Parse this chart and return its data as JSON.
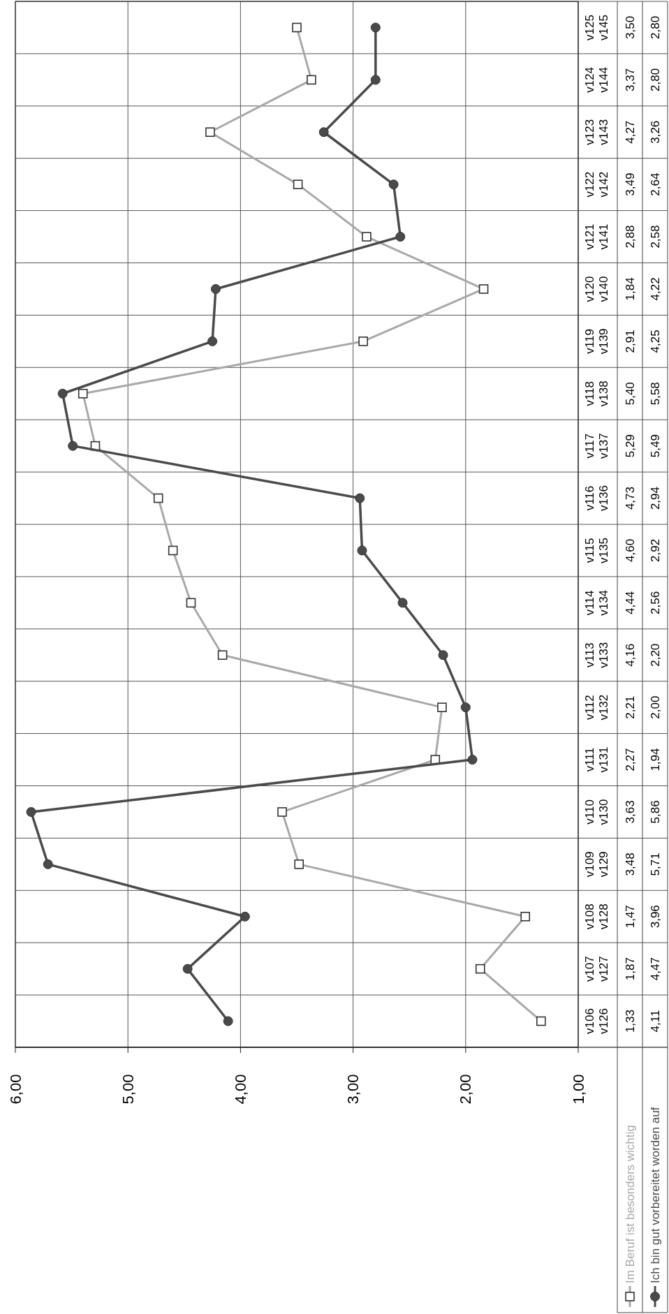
{
  "chart_data": {
    "type": "line",
    "orientation": "horizontal",
    "categories": [
      "v125\nv145",
      "v124\nv144",
      "v123\nv143",
      "v122\nv142",
      "v121\nv141",
      "v120\nv140",
      "v119\nv139",
      "v118\nv138",
      "v117\nv137",
      "v116\nv136",
      "v115\nv135",
      "v114\nv134",
      "v113\nv133",
      "v112\nv132",
      "v111\nv131",
      "v110\nv130",
      "v109\nv129",
      "v108\nv128",
      "v107\nv127",
      "v106\nv126"
    ],
    "xlim": [
      6,
      1
    ],
    "xticks": [
      {
        "value": 6,
        "label": "6,00"
      },
      {
        "value": 5,
        "label": "5,00"
      },
      {
        "value": 4,
        "label": "4,00"
      },
      {
        "value": 3,
        "label": "3,00"
      },
      {
        "value": 2,
        "label": "2,00"
      },
      {
        "value": 1,
        "label": "1,00"
      }
    ],
    "grid": true,
    "legend": "bottom",
    "series": [
      {
        "name": "Im Beruf ist besonders wichtig",
        "color": "#a8a8a8",
        "marker": "square",
        "values": [
          3.5,
          3.37,
          4.27,
          3.49,
          2.88,
          1.84,
          2.91,
          5.4,
          5.29,
          4.73,
          4.6,
          4.44,
          4.16,
          2.21,
          2.27,
          3.63,
          3.48,
          1.47,
          1.87,
          1.33
        ],
        "value_labels": [
          "3,50",
          "3,37",
          "4,27",
          "3,49",
          "2,88",
          "1,84",
          "2,91",
          "5,40",
          "5,29",
          "4,73",
          "4,60",
          "4,44",
          "4,16",
          "2,21",
          "2,27",
          "3,63",
          "3,48",
          "1,47",
          "1,87",
          "1,33"
        ]
      },
      {
        "name": "Ich bin gut vorbereitet worden auf",
        "color": "#4a4a4a",
        "marker": "circle",
        "values": [
          2.8,
          2.8,
          3.26,
          2.64,
          2.58,
          4.22,
          4.25,
          5.58,
          5.49,
          2.94,
          2.92,
          2.56,
          2.2,
          2.0,
          1.94,
          5.86,
          5.71,
          3.96,
          4.47,
          4.11
        ],
        "value_labels": [
          "2,80",
          "2,80",
          "3,26",
          "2,64",
          "2,58",
          "4,22",
          "4,25",
          "5,58",
          "5,49",
          "2,94",
          "2,92",
          "2,56",
          "2,20",
          "2,00",
          "1,94",
          "5,86",
          "5,71",
          "3,96",
          "4,47",
          "4,11"
        ]
      }
    ]
  }
}
